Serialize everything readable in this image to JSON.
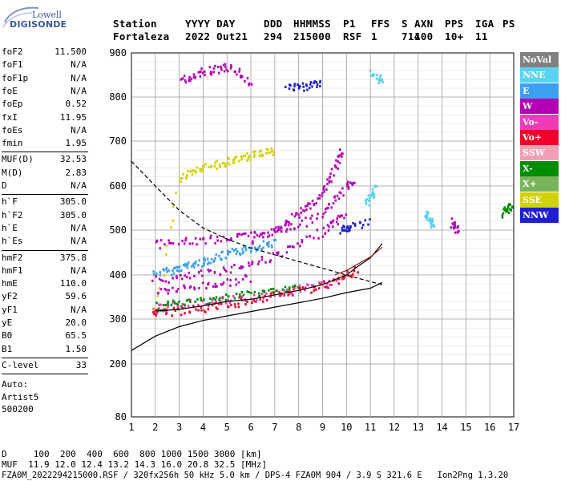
{
  "logo": {
    "line1": "Lowell",
    "line2": "DIGISONDE"
  },
  "header": {
    "labels": [
      "Station",
      "YYYY DAY",
      "DDD",
      "HHMMSS",
      "P1",
      "FFS",
      "S",
      "AXN",
      "PPS",
      "IGA",
      "PS"
    ],
    "values": [
      "Fortaleza",
      "2022 Out21",
      "294",
      "215000",
      "RSF",
      "1",
      "714",
      "100",
      "10+",
      "11"
    ]
  },
  "params_group1": [
    {
      "label": "foF2",
      "value": "11.500"
    },
    {
      "label": "foF1",
      "value": "N/A"
    },
    {
      "label": "foF1p",
      "value": "N/A"
    },
    {
      "label": "foE",
      "value": "N/A"
    },
    {
      "label": "foEp",
      "value": "0.52"
    },
    {
      "label": "fxI",
      "value": "11.95"
    },
    {
      "label": "foEs",
      "value": "N/A"
    },
    {
      "label": "fmin",
      "value": "1.95"
    }
  ],
  "params_group2": [
    {
      "label": "MUF(D)",
      "value": "32.53"
    },
    {
      "label": "M(D)",
      "value": "2.83"
    },
    {
      "label": "D",
      "value": "N/A"
    }
  ],
  "params_group3": [
    {
      "label": "h`F",
      "value": "305.0"
    },
    {
      "label": "h`F2",
      "value": "305.0"
    },
    {
      "label": "h`E",
      "value": "N/A"
    },
    {
      "label": "h`Es",
      "value": "N/A"
    }
  ],
  "params_group4": [
    {
      "label": "hmF2",
      "value": "375.8"
    },
    {
      "label": "hmF1",
      "value": "N/A"
    },
    {
      "label": "hmE",
      "value": "110.0"
    },
    {
      "label": "yF2",
      "value": "59.6"
    },
    {
      "label": "yF1",
      "value": "N/A"
    },
    {
      "label": "yE",
      "value": "20.0"
    },
    {
      "label": "B0",
      "value": "65.5"
    },
    {
      "label": "B1",
      "value": "1.50"
    }
  ],
  "params_group5": [
    {
      "label": "C-level",
      "value": "33"
    }
  ],
  "auto_lines": [
    "Auto:",
    "Artist5",
    "500200"
  ],
  "legend": [
    {
      "label": "NoVal",
      "color": "#808080"
    },
    {
      "label": "NNE",
      "color": "#5ad2f0"
    },
    {
      "label": "E",
      "color": "#3ca0f0"
    },
    {
      "label": "W",
      "color": "#b400b4"
    },
    {
      "label": "Vo-",
      "color": "#f03cb4"
    },
    {
      "label": "Vo+",
      "color": "#f00028"
    },
    {
      "label": "SSW",
      "color": "#f0a0b4"
    },
    {
      "label": "X-",
      "color": "#008c00"
    },
    {
      "label": "X+",
      "color": "#78b45a"
    },
    {
      "label": "SSE",
      "color": "#d2d200"
    },
    {
      "label": "NNW",
      "color": "#1e1ed2"
    }
  ],
  "footer": {
    "d_line": "D     100  200  400  600  800 1000 1500 3000 [km]",
    "muf_line": "MUF  11.9 12.0 12.4 13.2 14.3 16.0 20.8 32.5 [MHz]",
    "file_line": "FZA0M_2022294215000.RSF / 320fx256h 50 kHz 5.0 km / DPS-4 FZA0M 904 / 3.9 S 321.6 E   Ion2Png 1.3.20"
  },
  "chart_data": {
    "type": "scatter",
    "xlim": [
      1,
      17
    ],
    "ylim": [
      80,
      900
    ],
    "x_ticks": [
      1,
      2,
      3,
      4,
      5,
      6,
      7,
      8,
      9,
      10,
      11,
      12,
      13,
      14,
      15,
      16,
      17
    ],
    "y_ticks": [
      80,
      200,
      300,
      400,
      500,
      600,
      700,
      800,
      900
    ],
    "grid": true,
    "legend_position": "right",
    "lines": [
      {
        "style": "dashed",
        "color": "#000000",
        "points": [
          [
            1.0,
            655
          ],
          [
            2.0,
            600
          ],
          [
            3.0,
            545
          ],
          [
            4.0,
            505
          ],
          [
            5.0,
            480
          ],
          [
            6.0,
            460
          ],
          [
            7.0,
            445
          ],
          [
            8.0,
            430
          ],
          [
            9.0,
            415
          ],
          [
            10.0,
            400
          ],
          [
            11.0,
            385
          ],
          [
            11.5,
            378
          ]
        ]
      },
      {
        "style": "solid",
        "color": "#000000",
        "points": [
          [
            1.0,
            230
          ],
          [
            2.0,
            262
          ],
          [
            3.0,
            283
          ],
          [
            4.0,
            297
          ],
          [
            5.0,
            307
          ],
          [
            6.0,
            317
          ],
          [
            7.0,
            327
          ],
          [
            8.0,
            337
          ],
          [
            9.0,
            347
          ],
          [
            10.0,
            360
          ],
          [
            11.0,
            370
          ],
          [
            11.5,
            383
          ]
        ]
      },
      {
        "style": "solid",
        "color": "#000000",
        "points": [
          [
            2.0,
            318
          ],
          [
            3.0,
            322
          ],
          [
            4.0,
            330
          ],
          [
            5.0,
            340
          ],
          [
            6.0,
            345
          ],
          [
            7.0,
            355
          ],
          [
            8.0,
            365
          ],
          [
            9.0,
            378
          ],
          [
            10.0,
            400
          ],
          [
            10.5,
            420
          ],
          [
            11.0,
            438
          ],
          [
            11.5,
            470
          ]
        ]
      },
      {
        "style": "solid",
        "color": "#8b1a1a",
        "points": [
          [
            9.5,
            400
          ],
          [
            10.0,
            410
          ],
          [
            10.5,
            425
          ],
          [
            11.0,
            440
          ],
          [
            11.5,
            462
          ]
        ]
      }
    ],
    "traces": [
      {
        "color": "#3ca0f0",
        "points": [
          [
            1.9,
            405
          ],
          [
            2.5,
            410
          ],
          [
            3.0,
            418
          ],
          [
            3.5,
            425
          ],
          [
            4.0,
            432
          ],
          [
            4.5,
            440
          ],
          [
            5.0,
            448
          ],
          [
            5.5,
            455
          ],
          [
            6.0,
            462
          ],
          [
            6.5,
            470
          ],
          [
            7.0,
            475
          ]
        ]
      },
      {
        "color": "#b400b4",
        "points": [
          [
            1.9,
            390
          ],
          [
            3.0,
            395
          ],
          [
            4.0,
            405
          ],
          [
            5.0,
            415
          ],
          [
            6.0,
            428
          ],
          [
            7.0,
            445
          ],
          [
            8.0,
            470
          ],
          [
            9.0,
            500
          ],
          [
            9.5,
            520
          ],
          [
            10.0,
            540
          ]
        ]
      },
      {
        "color": "#b400b4",
        "points": [
          [
            2.0,
            365
          ],
          [
            3.0,
            370
          ],
          [
            4.0,
            378
          ],
          [
            5.0,
            385
          ],
          [
            6.0,
            395
          ]
        ]
      },
      {
        "color": "#b400b4",
        "points": [
          [
            2.0,
            470
          ],
          [
            3.0,
            475
          ],
          [
            4.0,
            480
          ],
          [
            5.0,
            485
          ],
          [
            6.0,
            490
          ],
          [
            7.0,
            500
          ],
          [
            8.0,
            515
          ],
          [
            9.0,
            540
          ],
          [
            9.5,
            570
          ],
          [
            10.0,
            600
          ],
          [
            10.3,
            620
          ]
        ]
      },
      {
        "color": "#b400b4",
        "points": [
          [
            6.0,
            480
          ],
          [
            7.0,
            500
          ],
          [
            7.5,
            520
          ],
          [
            8.0,
            540
          ],
          [
            8.5,
            560
          ],
          [
            9.0,
            590
          ],
          [
            9.3,
            620
          ],
          [
            9.6,
            660
          ],
          [
            9.8,
            685
          ]
        ]
      },
      {
        "color": "#f03cb4",
        "points": [
          [
            1.8,
            325
          ],
          [
            2.5,
            330
          ],
          [
            3.0,
            335
          ],
          [
            4.0,
            340
          ],
          [
            5.0,
            345
          ],
          [
            6.0,
            350
          ],
          [
            7.0,
            360
          ],
          [
            8.0,
            370
          ],
          [
            9.0,
            380
          ],
          [
            9.5,
            390
          ]
        ]
      },
      {
        "color": "#f00028",
        "points": [
          [
            1.8,
            315
          ],
          [
            2.5,
            318
          ],
          [
            3.5,
            322
          ],
          [
            4.5,
            330
          ],
          [
            5.5,
            340
          ],
          [
            6.5,
            350
          ],
          [
            7.5,
            360
          ],
          [
            8.5,
            372
          ],
          [
            9.5,
            385
          ],
          [
            10.0,
            400
          ],
          [
            10.5,
            415
          ]
        ]
      },
      {
        "color": "#008c00",
        "points": [
          [
            2.0,
            330
          ],
          [
            3.0,
            338
          ],
          [
            4.0,
            345
          ],
          [
            5.0,
            352
          ],
          [
            6.0,
            360
          ],
          [
            7.0,
            368
          ],
          [
            8.0,
            372
          ]
        ]
      },
      {
        "color": "#d2d200",
        "points": [
          [
            2.0,
            320
          ],
          [
            3.0,
            620
          ],
          [
            3.5,
            630
          ],
          [
            4.0,
            640
          ],
          [
            4.5,
            650
          ],
          [
            5.0,
            655
          ],
          [
            5.5,
            665
          ],
          [
            6.0,
            670
          ],
          [
            6.5,
            675
          ],
          [
            7.0,
            680
          ]
        ]
      },
      {
        "color": "#b400b4",
        "points": [
          [
            3.0,
            840
          ],
          [
            3.5,
            850
          ],
          [
            4.0,
            860
          ],
          [
            4.5,
            865
          ],
          [
            5.0,
            870
          ],
          [
            5.5,
            855
          ],
          [
            6.0,
            830
          ]
        ]
      },
      {
        "color": "#1e1ed2",
        "points": [
          [
            7.5,
            820
          ],
          [
            8.0,
            825
          ],
          [
            8.5,
            828
          ],
          [
            9.0,
            832
          ]
        ]
      },
      {
        "color": "#5ad2f0",
        "points": [
          [
            11.0,
            860
          ],
          [
            11.3,
            845
          ],
          [
            11.5,
            838
          ]
        ]
      },
      {
        "color": "#1e1ed2",
        "points": [
          [
            9.8,
            500
          ],
          [
            10.0,
            505
          ],
          [
            10.2,
            510
          ],
          [
            11.0,
            520
          ]
        ]
      },
      {
        "color": "#5ad2f0",
        "points": [
          [
            10.8,
            560
          ],
          [
            11.0,
            580
          ],
          [
            11.2,
            600
          ]
        ]
      },
      {
        "color": "#5ad2f0",
        "points": [
          [
            13.3,
            540
          ],
          [
            13.4,
            530
          ],
          [
            13.5,
            520
          ],
          [
            13.6,
            510
          ]
        ]
      },
      {
        "color": "#b400b4",
        "points": [
          [
            14.4,
            520
          ],
          [
            14.5,
            510
          ],
          [
            14.6,
            500
          ]
        ]
      },
      {
        "color": "#008c00",
        "points": [
          [
            16.5,
            540
          ],
          [
            16.7,
            550
          ],
          [
            16.9,
            560
          ]
        ]
      }
    ]
  }
}
